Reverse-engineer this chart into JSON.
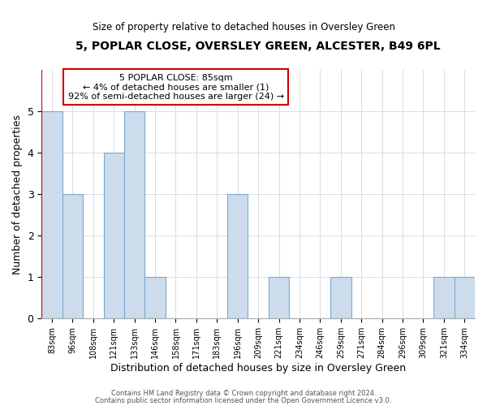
{
  "title": "5, POPLAR CLOSE, OVERSLEY GREEN, ALCESTER, B49 6PL",
  "subtitle": "Size of property relative to detached houses in Oversley Green",
  "xlabel": "Distribution of detached houses by size in Oversley Green",
  "ylabel": "Number of detached properties",
  "footer_lines": [
    "Contains HM Land Registry data © Crown copyright and database right 2024.",
    "Contains public sector information licensed under the Open Government Licence v3.0."
  ],
  "annotation_title": "5 POPLAR CLOSE: 85sqm",
  "annotation_line2": "← 4% of detached houses are smaller (1)",
  "annotation_line3": "92% of semi-detached houses are larger (24) →",
  "categories": [
    "83sqm",
    "96sqm",
    "108sqm",
    "121sqm",
    "133sqm",
    "146sqm",
    "158sqm",
    "171sqm",
    "183sqm",
    "196sqm",
    "209sqm",
    "221sqm",
    "234sqm",
    "246sqm",
    "259sqm",
    "271sqm",
    "284sqm",
    "296sqm",
    "309sqm",
    "321sqm",
    "334sqm"
  ],
  "values": [
    5,
    3,
    0,
    4,
    5,
    1,
    0,
    0,
    0,
    3,
    0,
    1,
    0,
    0,
    1,
    0,
    0,
    0,
    0,
    1,
    1
  ],
  "bar_color": "#ccdcec",
  "bar_edge_color": "#7aaad0",
  "annotation_box_edge_color": "#cc0000",
  "annotation_box_fill": "#ffffff",
  "vline_color": "#cc0000",
  "ylim": [
    0,
    6
  ],
  "yticks": [
    0,
    1,
    2,
    3,
    4,
    5
  ],
  "background_color": "#ffffff",
  "grid_color": "#d0d8e0"
}
